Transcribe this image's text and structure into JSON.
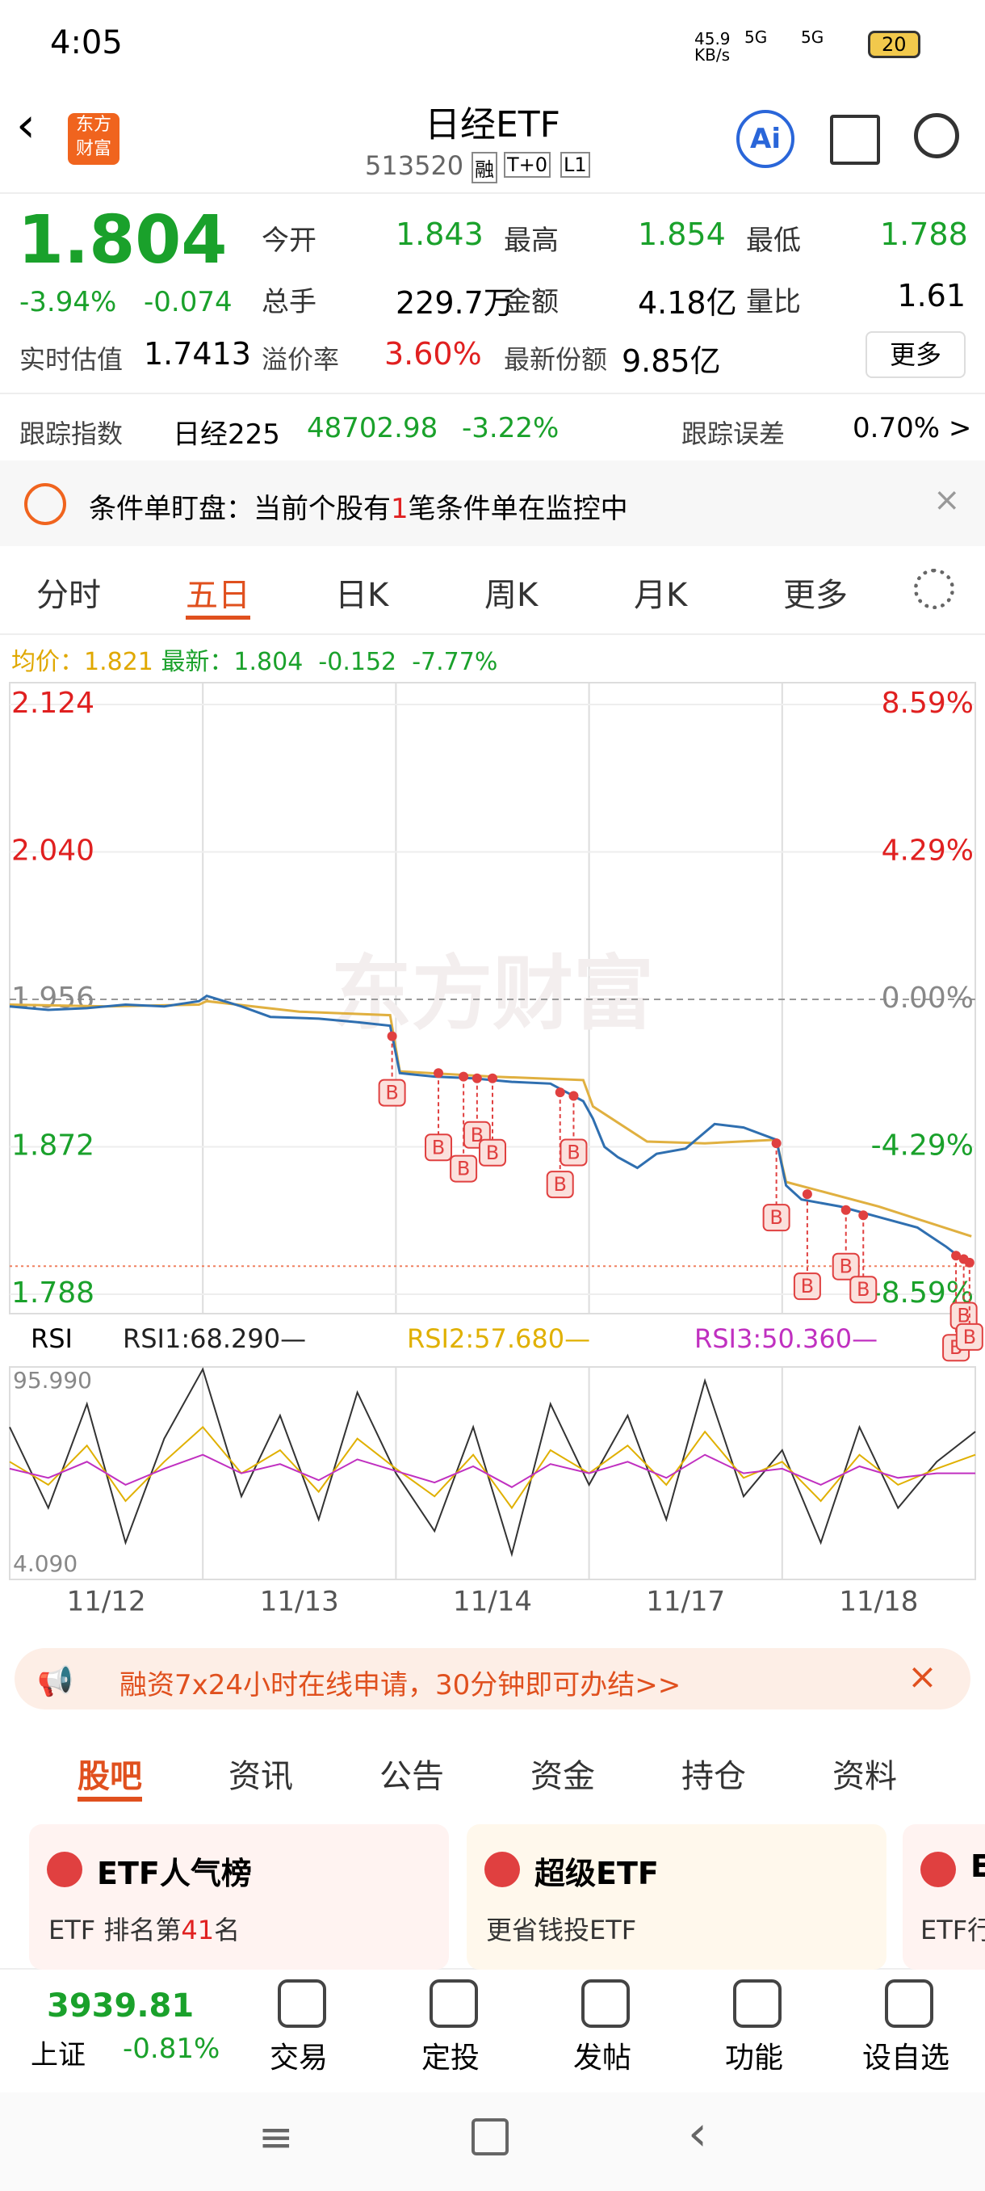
{
  "status": {
    "time": "4:05",
    "speed": "45.9 KB/s",
    "net1": "5G",
    "net2": "5G",
    "battery": "20"
  },
  "header": {
    "logo": "东方财富",
    "title": "日经ETF",
    "code": "513520",
    "badges": [
      "融",
      "T+0",
      "L1"
    ],
    "ai": "Ai"
  },
  "quote": {
    "price": "1.804",
    "change_pct": "-3.94%",
    "change": "-0.074",
    "fields": [
      [
        "今开",
        "1.843"
      ],
      [
        "最高",
        "1.854"
      ],
      [
        "最低",
        "1.788"
      ],
      [
        "总手",
        "229.7万"
      ],
      [
        "金额",
        "4.18亿"
      ],
      [
        "量比",
        "1.61"
      ]
    ],
    "estimate_label": "实时估值",
    "estimate": "1.7413",
    "premium_label": "溢价率",
    "premium": "3.60%",
    "shares_label": "最新份额",
    "shares": "9.85亿",
    "more": "更多"
  },
  "tracking": {
    "label": "跟踪指数",
    "index": "日经225",
    "value": "48702.98",
    "pct": "-3.22%",
    "error_label": "跟踪误差",
    "error": "0.70% >"
  },
  "alert": {
    "prefix": "条件单盯盘：当前个股有",
    "count": "1",
    "suffix": "笔条件单在监控中"
  },
  "tabs": [
    "分时",
    "五日",
    "日K",
    "周K",
    "月K",
    "更多"
  ],
  "chart": {
    "avg_label": "均价：1.821",
    "latest_label": "最新：1.804",
    "change": "-0.152",
    "pct": "-7.77%",
    "watermark": "东方财富",
    "ylim": [
      1.788,
      2.124
    ],
    "yticks": [
      {
        "value": 2.124,
        "label": "2.124"
      },
      {
        "value": 2.04,
        "label": "2.040"
      },
      {
        "value": 1.956,
        "label": "1.956"
      },
      {
        "value": 1.872,
        "label": "1.872"
      },
      {
        "value": 1.788,
        "label": "1.788"
      }
    ],
    "right_labels": [
      "8.59%",
      "4.29%",
      "0.00%",
      "-4.29%",
      "-8.59%"
    ],
    "dates": [
      "11/12",
      "11/13",
      "11/14",
      "11/17",
      "11/18"
    ],
    "price": {
      "x": [
        0,
        0.2,
        0.4,
        0.6,
        0.8,
        0.98,
        1.02,
        1.2,
        1.35,
        1.6,
        1.8,
        1.97,
        2.02,
        2.2,
        2.4,
        2.6,
        2.8,
        2.97,
        3.02,
        3.08,
        3.15,
        3.25,
        3.35,
        3.5,
        3.65,
        3.8,
        3.97,
        4.02,
        4.1,
        4.3,
        4.5,
        4.7,
        4.85,
        4.98
      ],
      "values": [
        1.952,
        1.95,
        1.951,
        1.953,
        1.952,
        1.955,
        1.958,
        1.952,
        1.946,
        1.945,
        1.943,
        1.941,
        1.914,
        1.912,
        1.911,
        1.909,
        1.908,
        1.898,
        1.888,
        1.872,
        1.866,
        1.86,
        1.868,
        1.871,
        1.885,
        1.883,
        1.876,
        1.85,
        1.842,
        1.838,
        1.832,
        1.826,
        1.815,
        1.804
      ]
    },
    "avg": {
      "x": [
        0,
        0.5,
        0.98,
        1.02,
        1.5,
        1.97,
        2.02,
        2.5,
        2.97,
        3.02,
        3.3,
        3.6,
        3.97,
        4.02,
        4.5,
        4.98
      ],
      "values": [
        1.953,
        1.952,
        1.953,
        1.955,
        1.949,
        1.947,
        1.915,
        1.912,
        1.91,
        1.895,
        1.875,
        1.874,
        1.876,
        1.852,
        1.838,
        1.821
      ]
    },
    "markers": {
      "label": "B",
      "x": [
        1.98,
        2.22,
        2.35,
        2.42,
        2.5,
        2.85,
        2.92,
        3.97,
        4.13,
        4.33,
        4.42,
        4.9,
        4.94,
        4.97
      ],
      "values": [
        1.935,
        1.914,
        1.912,
        1.911,
        1.911,
        1.903,
        1.901,
        1.874,
        1.845,
        1.836,
        1.833,
        1.81,
        1.808,
        1.806
      ]
    },
    "rsi": {
      "label": "RSI",
      "rsi1": "RSI1:68.290—",
      "rsi2": "RSI2:57.680—",
      "rsi3": "RSI3:50.360—",
      "top": "95.990",
      "bottom": "4.090",
      "ylim": [
        4.09,
        95.99
      ],
      "x": [
        0,
        0.2,
        0.4,
        0.6,
        0.8,
        1,
        1.2,
        1.4,
        1.6,
        1.8,
        2,
        2.2,
        2.4,
        2.6,
        2.8,
        3,
        3.2,
        3.4,
        3.6,
        3.8,
        4,
        4.2,
        4.4,
        4.6,
        4.8,
        5
      ],
      "s1": [
        70,
        35,
        80,
        20,
        65,
        95,
        40,
        75,
        30,
        85,
        50,
        25,
        70,
        15,
        80,
        45,
        75,
        30,
        90,
        40,
        60,
        20,
        70,
        35,
        55,
        68
      ],
      "s2": [
        55,
        45,
        62,
        38,
        55,
        70,
        50,
        60,
        42,
        65,
        52,
        40,
        58,
        35,
        60,
        50,
        62,
        45,
        68,
        48,
        55,
        38,
        58,
        45,
        52,
        58
      ],
      "s3": [
        52,
        48,
        55,
        45,
        52,
        58,
        50,
        54,
        47,
        56,
        51,
        46,
        53,
        44,
        54,
        50,
        55,
        48,
        58,
        50,
        52,
        45,
        53,
        48,
        50,
        50
      ]
    }
  },
  "ad": "融资7x24小时在线申请，30分钟即可办结>>",
  "news_tabs": [
    "股吧",
    "资讯",
    "公告",
    "资金",
    "持仓",
    "资料"
  ],
  "cards": [
    {
      "title": "ETF人气榜",
      "line_a": "ETF 排名第",
      "rank": "41",
      "line_b": "名"
    },
    {
      "title": "超级ETF",
      "line": "更省钱投ETF"
    },
    {
      "title": "E",
      "line": "ETF行"
    }
  ],
  "bottom": {
    "index": "3939.81",
    "name": "上证",
    "pct": "-0.81%",
    "items": [
      "交易",
      "定投",
      "发帖",
      "功能",
      "设自选"
    ]
  }
}
